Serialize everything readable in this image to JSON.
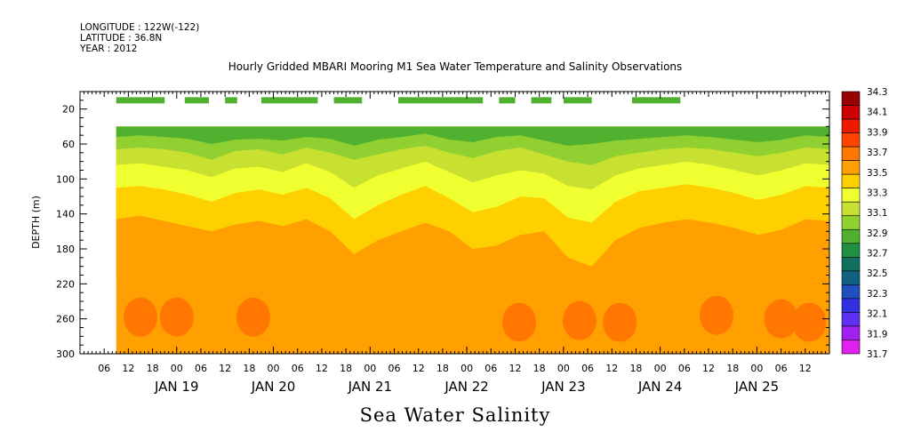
{
  "header": {
    "longitude": "LONGITUDE : 122W(-122)",
    "latitude": "LATITUDE : 36.8N",
    "year": "YEAR : 2012"
  },
  "plot_title": "Hourly Gridded MBARI Mooring M1 Sea Water Temperature and Salinity Observations",
  "bottom_title": "Sea Water Salinity",
  "chart_data": {
    "type": "heatmap",
    "title": "Hourly Gridded MBARI Mooring M1 Sea Water Temperature and Salinity Observations",
    "subtitle": "Sea Water Salinity",
    "xlabel": "",
    "ylabel": "DEPTH (m)",
    "ylim": [
      300,
      0
    ],
    "y_ticks": [
      20,
      60,
      100,
      140,
      180,
      220,
      260,
      300
    ],
    "x_range": [
      "2012-01-18T00:00",
      "2012-01-25T18:00"
    ],
    "x_hour_ticks": [
      "06",
      "12",
      "18",
      "00",
      "06",
      "12",
      "18",
      "00",
      "06",
      "12",
      "18",
      "00",
      "06",
      "12",
      "18",
      "00",
      "06",
      "12",
      "18",
      "00",
      "06",
      "12",
      "18",
      "00",
      "06",
      "12",
      "18",
      "00",
      "06",
      "12"
    ],
    "x_day_labels": [
      "JAN 19",
      "JAN 20",
      "JAN 21",
      "JAN 22",
      "JAN 23",
      "JAN 24",
      "JAN 25"
    ],
    "colorbar": {
      "levels": [
        34.3,
        34.1,
        33.9,
        33.7,
        33.5,
        33.3,
        33.1,
        32.9,
        32.7,
        32.5,
        32.3,
        32.1,
        31.9,
        31.7
      ],
      "colors": [
        "#990000",
        "#cc0000",
        "#ee1a00",
        "#ff4400",
        "#ff7700",
        "#ffa000",
        "#ffd000",
        "#f0ff30",
        "#c8e030",
        "#90d030",
        "#50b030",
        "#209040",
        "#107060",
        "#106080",
        "#2050c0",
        "#3030e0",
        "#6030f0",
        "#a020f0",
        "#e020f0"
      ]
    },
    "surface_salinity": 33.2,
    "surface_obs_depth": 10,
    "surface_obs_periods": [
      [
        "2012-01-18T09:00",
        "2012-01-18T21:00"
      ],
      [
        "2012-01-19T02:00",
        "2012-01-19T08:00"
      ],
      [
        "2012-01-19T12:00",
        "2012-01-19T15:00"
      ],
      [
        "2012-01-19T21:00",
        "2012-01-20T11:00"
      ],
      [
        "2012-01-20T15:00",
        "2012-01-20T22:00"
      ],
      [
        "2012-01-21T07:00",
        "2012-01-22T04:00"
      ],
      [
        "2012-01-22T08:00",
        "2012-01-22T12:00"
      ],
      [
        "2012-01-22T16:00",
        "2012-01-22T21:00"
      ],
      [
        "2012-01-23T00:00",
        "2012-01-23T07:00"
      ],
      [
        "2012-01-23T17:00",
        "2012-01-24T05:00"
      ]
    ],
    "data_start": "2012-01-18T09:00",
    "data_top_depth": 40,
    "isohalines": [
      {
        "level": 33.3,
        "depth": [
          52,
          50,
          52,
          54,
          60,
          55,
          54,
          56,
          52,
          54,
          62,
          55,
          52,
          48,
          55,
          58,
          52,
          50,
          56,
          62,
          60,
          56,
          54,
          52,
          50,
          52,
          55,
          58,
          55,
          50,
          52
        ]
      },
      {
        "level": 33.5,
        "depth": [
          66,
          64,
          66,
          70,
          78,
          68,
          66,
          72,
          64,
          70,
          78,
          72,
          66,
          62,
          70,
          76,
          68,
          64,
          72,
          80,
          84,
          74,
          70,
          66,
          64,
          66,
          70,
          74,
          70,
          64,
          66
        ]
      },
      {
        "level": 33.7,
        "depth": [
          84,
          82,
          86,
          90,
          98,
          88,
          86,
          92,
          82,
          92,
          110,
          96,
          88,
          80,
          92,
          104,
          96,
          90,
          94,
          108,
          112,
          96,
          88,
          84,
          80,
          84,
          90,
          96,
          90,
          82,
          84
        ]
      },
      {
        "level": 33.9,
        "depth": [
          110,
          108,
          112,
          118,
          126,
          116,
          112,
          118,
          110,
          122,
          146,
          130,
          118,
          108,
          122,
          138,
          132,
          120,
          122,
          144,
          150,
          126,
          114,
          110,
          106,
          110,
          116,
          124,
          118,
          108,
          110
        ]
      },
      {
        "level": 34.1,
        "depth": [
          146,
          142,
          148,
          154,
          160,
          152,
          148,
          154,
          146,
          160,
          186,
          170,
          160,
          150,
          160,
          180,
          176,
          164,
          160,
          190,
          200,
          170,
          156,
          150,
          146,
          150,
          156,
          164,
          158,
          146,
          148
        ]
      },
      {
        "level": 34.3,
        "depth": [
          216,
          212,
          218,
          224,
          228,
          222,
          218,
          224,
          218,
          232,
          244,
          236,
          230,
          222,
          230,
          246,
          244,
          236,
          230,
          250,
          262,
          238,
          226,
          220,
          216,
          220,
          226,
          232,
          226,
          216,
          218
        ]
      }
    ],
    "max_salinity_patches": [
      {
        "center": "2012-01-18T15:00",
        "depth": 258
      },
      {
        "center": "2012-01-19T00:00",
        "depth": 258
      },
      {
        "center": "2012-01-19T19:00",
        "depth": 258
      },
      {
        "center": "2012-01-22T13:00",
        "depth": 264
      },
      {
        "center": "2012-01-23T04:00",
        "depth": 262
      },
      {
        "center": "2012-01-23T14:00",
        "depth": 264
      },
      {
        "center": "2012-01-24T14:00",
        "depth": 256
      },
      {
        "center": "2012-01-25T06:00",
        "depth": 260
      },
      {
        "center": "2012-01-25T13:00",
        "depth": 264
      }
    ]
  }
}
